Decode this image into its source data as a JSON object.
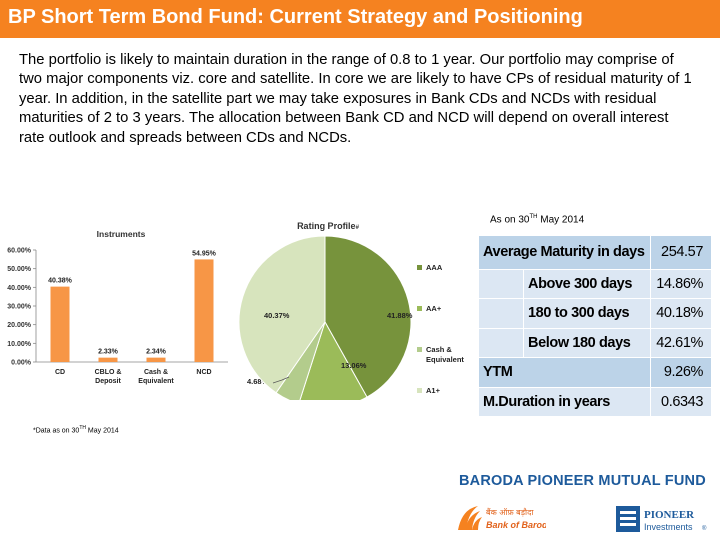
{
  "title": "BP Short Term Bond Fund: Current Strategy and Positioning",
  "intro": "The portfolio is likely to maintain duration in the range of 0.8 to 1 year. Our portfolio may comprise of two major components viz. core and satellite. In core we are likely to have CPs of residual maturity of 1 year. In addition, in the satellite part we may take exposures in Bank CDs and NCDs with residual maturities of 2 to 3 years. The allocation between Bank CD and NCD will depend on overall interest rate outlook and spreads between CDs and NCDs.",
  "chart_data": [
    {
      "type": "bar",
      "title": "Instruments",
      "title_mark": "#",
      "categories": [
        [
          "CD"
        ],
        [
          "CBLO &",
          "Deposit"
        ],
        [
          "Cash &",
          "Equivalent"
        ],
        [
          "NCD"
        ]
      ],
      "values": [
        40.38,
        2.33,
        2.34,
        54.95
      ],
      "value_labels": [
        "40.38%",
        "2.33%",
        "2.34%",
        "54.95%"
      ],
      "ylim": [
        0,
        60
      ],
      "yticks": [
        "0.00%",
        "10.00%",
        "20.00%",
        "30.00%",
        "40.00%",
        "50.00%",
        "60.00%"
      ],
      "grid": false,
      "color": "#f79646"
    },
    {
      "type": "pie",
      "title": "Rating Profile",
      "title_mark": "#",
      "labels": [
        "AAA",
        "AA+",
        "Cash & Equivalent",
        "A1+"
      ],
      "legend_labels": [
        [
          "AAA"
        ],
        [
          "AA+"
        ],
        [
          "Cash &",
          "Equivalent"
        ],
        [
          "A1+"
        ]
      ],
      "values": [
        41.88,
        13.06,
        4.68,
        40.37
      ],
      "value_labels": [
        "41.88%",
        "13.06%",
        "4.68%",
        "40.37%"
      ],
      "colors": [
        "#77933c",
        "#9bbb59",
        "#b3cc8c",
        "#d7e4bd"
      ],
      "legend_position": "right"
    }
  ],
  "asof": {
    "prefix": "As on 30",
    "sup": "TH",
    "suffix": " May 2014"
  },
  "stats_table": {
    "header": {
      "label": "Average Maturity in days",
      "value": "254.57"
    },
    "sub_rows": [
      {
        "label": "Above 300 days",
        "value": "14.86%"
      },
      {
        "label": "180 to 300 days",
        "value": "40.18%"
      },
      {
        "label": "Below 180 days",
        "value": "42.61%"
      }
    ],
    "ytm": {
      "label": "YTM",
      "value": "9.26%"
    },
    "duration": {
      "label": "M.Duration in years",
      "value": "0.6343"
    }
  },
  "footnote": {
    "prefix": "*Data as on 30",
    "sup": "TH",
    "suffix": " May 2014"
  },
  "brand": "BARODA PIONEER MUTUAL FUND",
  "logos": {
    "bob_hindi": "बैंक ऑफ़ बड़ौदा",
    "bob_english": "Bank of Baroda",
    "pioneer_name": "PIONEER",
    "pioneer_sub": "Investments",
    "pioneer_reg": "®"
  }
}
